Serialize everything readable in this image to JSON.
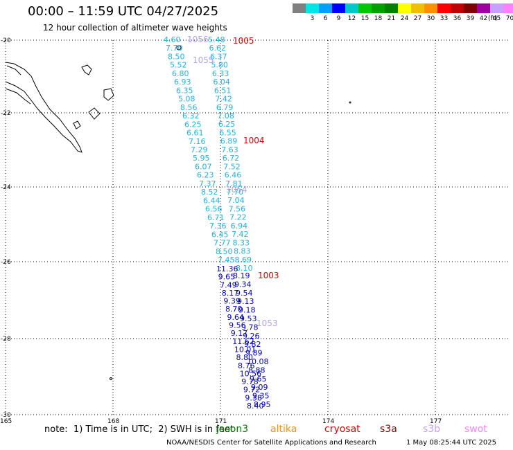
{
  "header": {
    "title": "00:00 – 11:59 UTC 04/27/2025",
    "subtitle": "12 hour collection of altimeter wave heights"
  },
  "legend": {
    "unit": "(ft)",
    "items": [
      {
        "label": "",
        "color": "#808080"
      },
      {
        "label": "3",
        "color": "#00e5e5"
      },
      {
        "label": "6",
        "color": "#00a0ff"
      },
      {
        "label": "9",
        "color": "#0000ff"
      },
      {
        "label": "12",
        "color": "#00c8c8"
      },
      {
        "label": "15",
        "color": "#00c800"
      },
      {
        "label": "18",
        "color": "#00a000"
      },
      {
        "label": "21",
        "color": "#008000"
      },
      {
        "label": "24",
        "color": "#ffff00"
      },
      {
        "label": "27",
        "color": "#f0c000"
      },
      {
        "label": "30",
        "color": "#ff9000"
      },
      {
        "label": "33",
        "color": "#ff0000"
      },
      {
        "label": "36",
        "color": "#c00000"
      },
      {
        "label": "39",
        "color": "#800000"
      },
      {
        "label": "42",
        "color": "#a000a0"
      },
      {
        "label": "45",
        "color": "#c8a0ff"
      },
      {
        "label": "70",
        "color": "#ff80ff"
      },
      {
        "label": "",
        "color": "#000000"
      }
    ]
  },
  "map": {
    "lon_range": [
      165,
      179
    ],
    "lat_range": [
      -30,
      -20
    ],
    "x_ticks": [
      "165",
      "168",
      "171",
      "174",
      "177"
    ],
    "y_ticks": [
      "-20",
      "-22",
      "-24",
      "-26",
      "-28",
      "-30"
    ]
  },
  "chart_data": {
    "type": "scatter",
    "colors": {
      "light": "#1eb4e6",
      "dark": "#0000c8",
      "passid_red": "#dd0000",
      "passid_lavender": "#b4a0f0"
    },
    "track_light": [
      "4.60",
      "7.70",
      "8.50",
      "5.52",
      "6.80",
      "6.93",
      "6.35",
      "5.08",
      "8.56",
      "6.32",
      "6.25",
      "6.61",
      "7.16",
      "7.29",
      "5.95",
      "6.07",
      "6.23",
      "7.37",
      "8.52",
      "6.44",
      "6.56",
      "6.71",
      "7.36",
      "6.45",
      "7.77",
      "8.50",
      "7.45"
    ],
    "track_light_2": [
      "5.48",
      "6.62",
      "6.37",
      "5.80",
      "6.33",
      "6.04",
      "6.51",
      "7.42",
      "6.79",
      "7.08",
      "6.25",
      "6.55",
      "6.89",
      "7.63",
      "6.72",
      "7.52",
      "6.46",
      "7.81",
      "7.70",
      "7.04",
      "7.56",
      "7.22",
      "6.94",
      "7.42",
      "8.33",
      "8.83",
      "8.69",
      "8.10"
    ],
    "track_dark": [
      "11.36",
      "9.65",
      "7.49",
      "8.17",
      "9.39",
      "8.70",
      "9.64",
      "9.56",
      "9.17",
      "11.62",
      "10.01",
      "8.80",
      "8.76",
      "10.56",
      "9.78",
      "9.72",
      "9.38",
      "8.40"
    ],
    "track_dark_2": [
      "8.19",
      "9.34",
      "9.54",
      "9.13",
      "9.18",
      "9.53",
      "9.78",
      "9.26",
      "9.82",
      "9.89",
      "10.08",
      "8.88",
      "9.65",
      "9.09",
      "9.35",
      "8.95"
    ],
    "pass_ids": [
      {
        "label": "1005",
        "color": "red"
      },
      {
        "label": "1056",
        "color": "lavender"
      },
      {
        "label": "1055",
        "color": "lavender"
      },
      {
        "label": "1004",
        "color": "red"
      },
      {
        "label": "1054",
        "color": "lavender"
      },
      {
        "label": "1003",
        "color": "red"
      },
      {
        "label": "1053",
        "color": "lavender"
      }
    ]
  },
  "footer": {
    "note": "note:  1) Time is in UTC;  2) SWH is in feet",
    "satellites": [
      {
        "name": "jason3",
        "color": "#008000"
      },
      {
        "name": "altika",
        "color": "#ff9000"
      },
      {
        "name": "cryosat",
        "color": "#dd0000"
      },
      {
        "name": "s3a",
        "color": "#800000"
      },
      {
        "name": "s3b",
        "color": "#c8a0ff"
      },
      {
        "name": "swot",
        "color": "#ff80ff"
      }
    ],
    "credit": "NOAA/NESDIS Center for Satellite Applications and Research",
    "timestamp": "1 May 08:25:44 UTC 2025"
  }
}
